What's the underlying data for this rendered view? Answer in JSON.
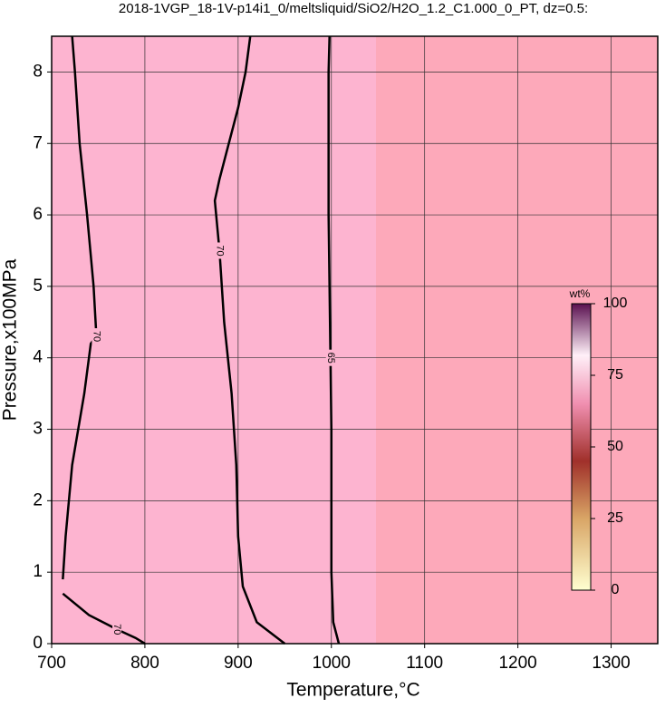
{
  "chart_data": {
    "type": "contour",
    "title": "2018-1VGP_18-1V-p14i1_0/meltsliquid/SiO2/H2O_1.2_C1.000_0_PT, dz=0.5:",
    "xlabel": "Temperature,°C",
    "ylabel": "Pressure,x100MPa",
    "xlim": [
      700,
      1350
    ],
    "ylim": [
      0,
      8.5
    ],
    "xticks": [
      700,
      800,
      900,
      1000,
      1100,
      1200,
      1300
    ],
    "yticks": [
      0,
      1,
      2,
      3,
      4,
      5,
      6,
      7,
      8
    ],
    "grid": true,
    "contours": [
      {
        "level": 70,
        "x": [
          712,
          715,
          722,
          735,
          742,
          748,
          745,
          738,
          730,
          725,
          722
        ],
        "y": [
          0.9,
          1.5,
          2.5,
          3.5,
          4.2,
          4.3,
          5,
          6,
          7,
          8,
          8.5
        ]
      },
      {
        "level": 70,
        "x": [
          712,
          740,
          770,
          790,
          800
        ],
        "y": [
          0.7,
          0.4,
          0.2,
          0.08,
          0
        ]
      },
      {
        "level": 70,
        "x": [
          950,
          920,
          905,
          900,
          898,
          893,
          885,
          880,
          875,
          880,
          890,
          900,
          908,
          913
        ],
        "y": [
          0,
          0.3,
          0.8,
          1.5,
          2.5,
          3.5,
          4.5,
          5.5,
          6.2,
          6.5,
          7,
          7.5,
          8,
          8.5
        ]
      },
      {
        "level": 65,
        "x": [
          1008,
          1002,
          1000,
          1000,
          1000,
          999,
          998,
          997,
          997,
          997,
          998
        ],
        "y": [
          0,
          0.3,
          1,
          2,
          3,
          4,
          5,
          6,
          7,
          8,
          8.5
        ]
      }
    ],
    "colorbar": {
      "label": "wt%",
      "lim": [
        0,
        100
      ],
      "ticks": [
        0,
        25,
        50,
        75,
        100
      ]
    }
  }
}
